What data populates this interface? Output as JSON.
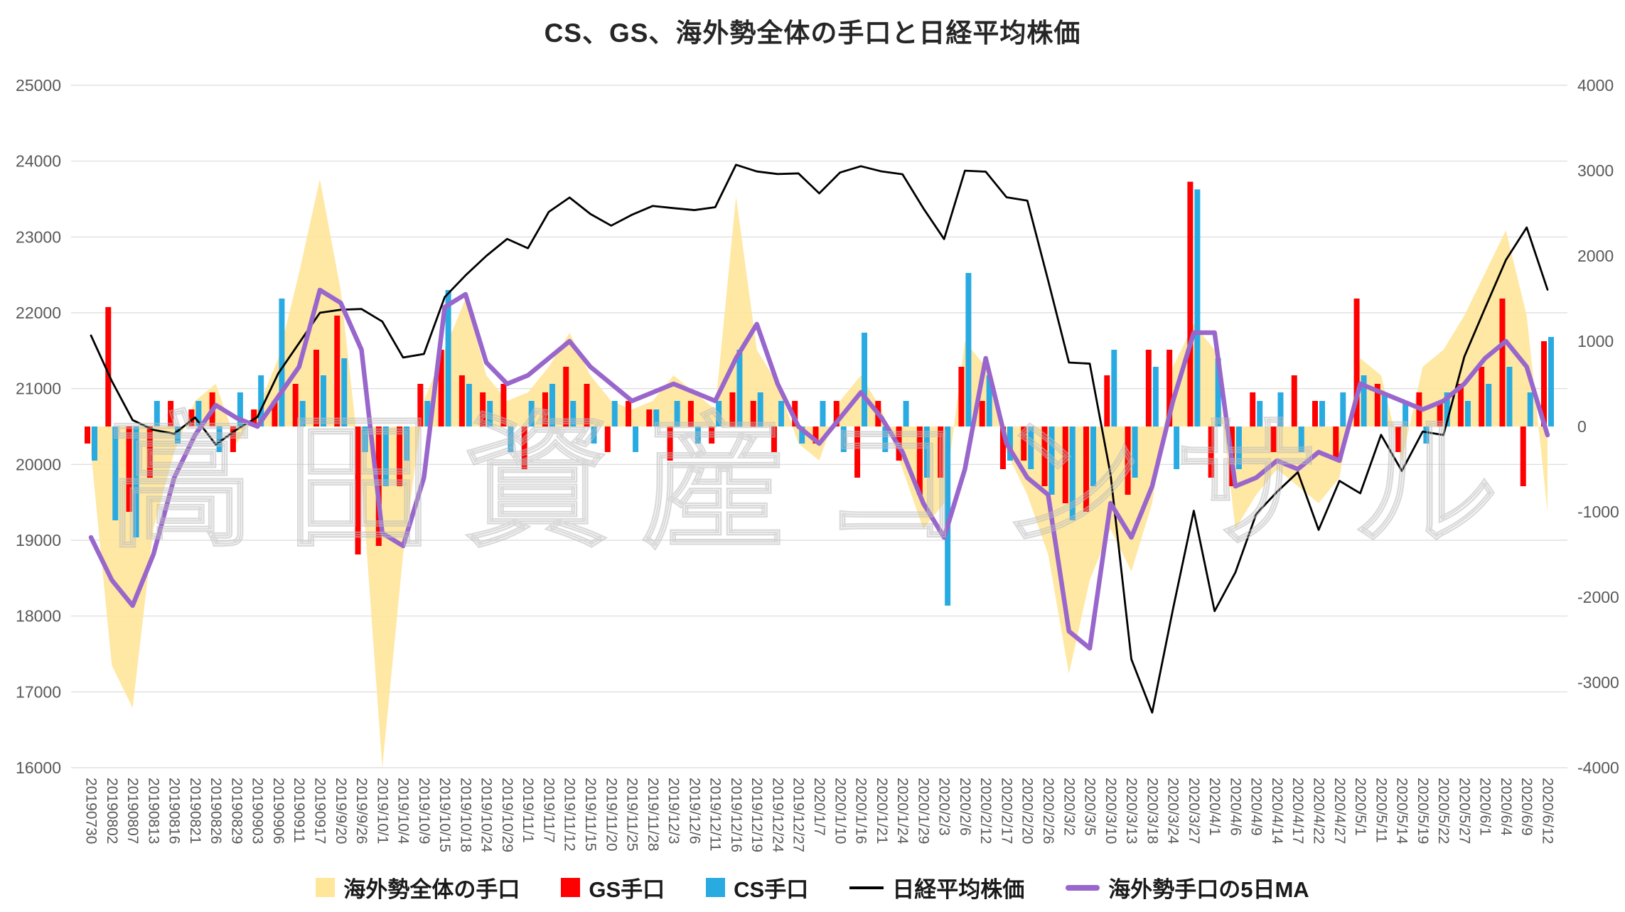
{
  "watermark": "高田資産コンサル",
  "chart_data": {
    "type": "combo",
    "title": "CS、GS、海外勢全体の手口と日経平均株価",
    "grid": true,
    "legend_position": "bottom",
    "left_axis": {
      "min": 16000,
      "max": 25000,
      "step": 1000
    },
    "right_axis": {
      "min": -4000,
      "max": 4000,
      "step": 1000
    },
    "x_labels": [
      "20190730",
      "20190802",
      "20190807",
      "20190813",
      "20190816",
      "20190821",
      "20190826",
      "20190829",
      "20190903",
      "20190906",
      "20190911",
      "20190917",
      "2019/9/20",
      "2019/9/26",
      "2019/10/1",
      "2019/10/4",
      "2019/10/9",
      "2019/10/15",
      "2019/10/18",
      "2019/10/24",
      "2019/10/29",
      "2019/11/1",
      "2019/11/7",
      "2019/11/12",
      "2019/11/15",
      "2019/11/20",
      "2019/11/25",
      "2019/11/28",
      "2019/12/3",
      "2019/12/6",
      "2019/12/11",
      "2019/12/16",
      "2019/12/19",
      "2019/12/24",
      "2019/12/27",
      "2020/1/7",
      "2020/1/10",
      "2020/1/16",
      "2020/1/21",
      "2020/1/24",
      "2020/1/29",
      "2020/2/3",
      "2020/2/6",
      "2020/2/12",
      "2020/2/17",
      "2020/2/20",
      "2020/2/26",
      "2020/3/2",
      "2020/3/5",
      "2020/3/10",
      "2020/3/13",
      "2020/3/18",
      "2020/3/24",
      "2020/3/27",
      "2020/4/1",
      "2020/4/6",
      "2020/4/9",
      "2020/4/14",
      "2020/4/17",
      "2020/4/22",
      "2020/4/27",
      "2020/5/1",
      "2020/5/11",
      "2020/5/14",
      "2020/5/19",
      "2020/5/22",
      "2020/5/27",
      "2020/6/1",
      "2020/6/4",
      "2020/6/9",
      "2020/6/12"
    ],
    "series": [
      {
        "name": "海外勢全体の手口",
        "type": "area",
        "axis": "right",
        "color": "#FFE699",
        "values": [
          -300,
          -2800,
          -3300,
          -1200,
          -300,
          300,
          500,
          -200,
          200,
          800,
          1800,
          2900,
          1600,
          -600,
          -4000,
          -1500,
          300,
          900,
          1500,
          600,
          300,
          400,
          700,
          1100,
          600,
          300,
          200,
          300,
          600,
          400,
          200,
          2700,
          900,
          500,
          -200,
          -400,
          300,
          600,
          200,
          -500,
          -1200,
          -900,
          1000,
          700,
          -300,
          -800,
          -1500,
          -2900,
          -1800,
          -1200,
          -1700,
          -900,
          700,
          1200,
          900,
          -1200,
          -800,
          -500,
          -700,
          -900,
          -600,
          800,
          600,
          -400,
          700,
          900,
          1300,
          1800,
          2300,
          1300,
          -1000
        ]
      },
      {
        "name": "GS手口",
        "type": "bar",
        "axis": "right",
        "color": "#FF0000",
        "values": [
          -200,
          1400,
          -1000,
          -600,
          300,
          200,
          400,
          -300,
          200,
          300,
          500,
          900,
          1300,
          -1500,
          -1400,
          -700,
          500,
          900,
          600,
          400,
          500,
          -500,
          400,
          700,
          500,
          -300,
          300,
          200,
          -400,
          300,
          -200,
          400,
          300,
          -300,
          300,
          -200,
          300,
          -600,
          300,
          -400,
          -800,
          -600,
          700,
          300,
          -500,
          -400,
          -700,
          -900,
          -1000,
          600,
          -800,
          900,
          900,
          2870,
          -600,
          -700,
          400,
          -300,
          600,
          300,
          -400,
          1500,
          500,
          -300,
          400,
          300,
          500,
          700,
          1500,
          -700,
          1000
        ]
      },
      {
        "name": "CS手口",
        "type": "bar",
        "axis": "right",
        "color": "#29ABE2",
        "values": [
          -400,
          -1100,
          -1300,
          300,
          -200,
          300,
          -300,
          400,
          600,
          1500,
          300,
          600,
          800,
          -300,
          -700,
          -400,
          300,
          1600,
          500,
          300,
          -300,
          300,
          500,
          300,
          -200,
          300,
          -300,
          200,
          300,
          -200,
          300,
          900,
          400,
          300,
          -200,
          300,
          -300,
          1100,
          -300,
          300,
          -600,
          -2100,
          1800,
          600,
          -400,
          -500,
          -800,
          -1100,
          -700,
          900,
          -600,
          700,
          -500,
          2780,
          800,
          -500,
          300,
          400,
          -300,
          300,
          400,
          600,
          400,
          300,
          -200,
          400,
          300,
          500,
          700,
          400,
          1050
        ]
      },
      {
        "name": "日経平均株価",
        "type": "line",
        "axis": "left",
        "color": "#000000",
        "values": [
          21700,
          21100,
          20585,
          20455,
          20405,
          20618,
          20261,
          20460,
          20625,
          21200,
          21600,
          22000,
          22040,
          22050,
          21885,
          21410,
          21456,
          22207,
          22493,
          22750,
          22974,
          22851,
          23330,
          23520,
          23303,
          23149,
          23293,
          23409,
          23380,
          23354,
          23392,
          23952,
          23864,
          23830,
          23838,
          23575,
          23850,
          23933,
          23864,
          23827,
          23379,
          22972,
          23874,
          23861,
          23523,
          23479,
          22426,
          21344,
          21329,
          19867,
          17431,
          16727,
          18092,
          19389,
          18065,
          18576,
          19346,
          19638,
          19897,
          19137,
          19783,
          19619,
          20390,
          19914,
          20433,
          20388,
          21419,
          22062,
          22696,
          23125,
          22305
        ]
      },
      {
        "name": "海外勢手口の5日MA",
        "type": "line",
        "axis": "right",
        "color": "#9966CC",
        "values": [
          -1300,
          -1800,
          -2100,
          -1500,
          -600,
          -100,
          250,
          100,
          0,
          350,
          700,
          1600,
          1450,
          900,
          -1250,
          -1400,
          -600,
          1400,
          1550,
          750,
          500,
          600,
          800,
          1000,
          700,
          500,
          300,
          400,
          500,
          400,
          300,
          800,
          1200,
          500,
          0,
          -200,
          100,
          400,
          100,
          -300,
          -900,
          -1300,
          -500,
          800,
          -200,
          -600,
          -800,
          -2400,
          -2600,
          -900,
          -1300,
          -700,
          300,
          1100,
          1100,
          -700,
          -600,
          -400,
          -500,
          -300,
          -400,
          500,
          400,
          300,
          200,
          300,
          500,
          800,
          1000,
          700,
          -100
        ]
      }
    ]
  }
}
